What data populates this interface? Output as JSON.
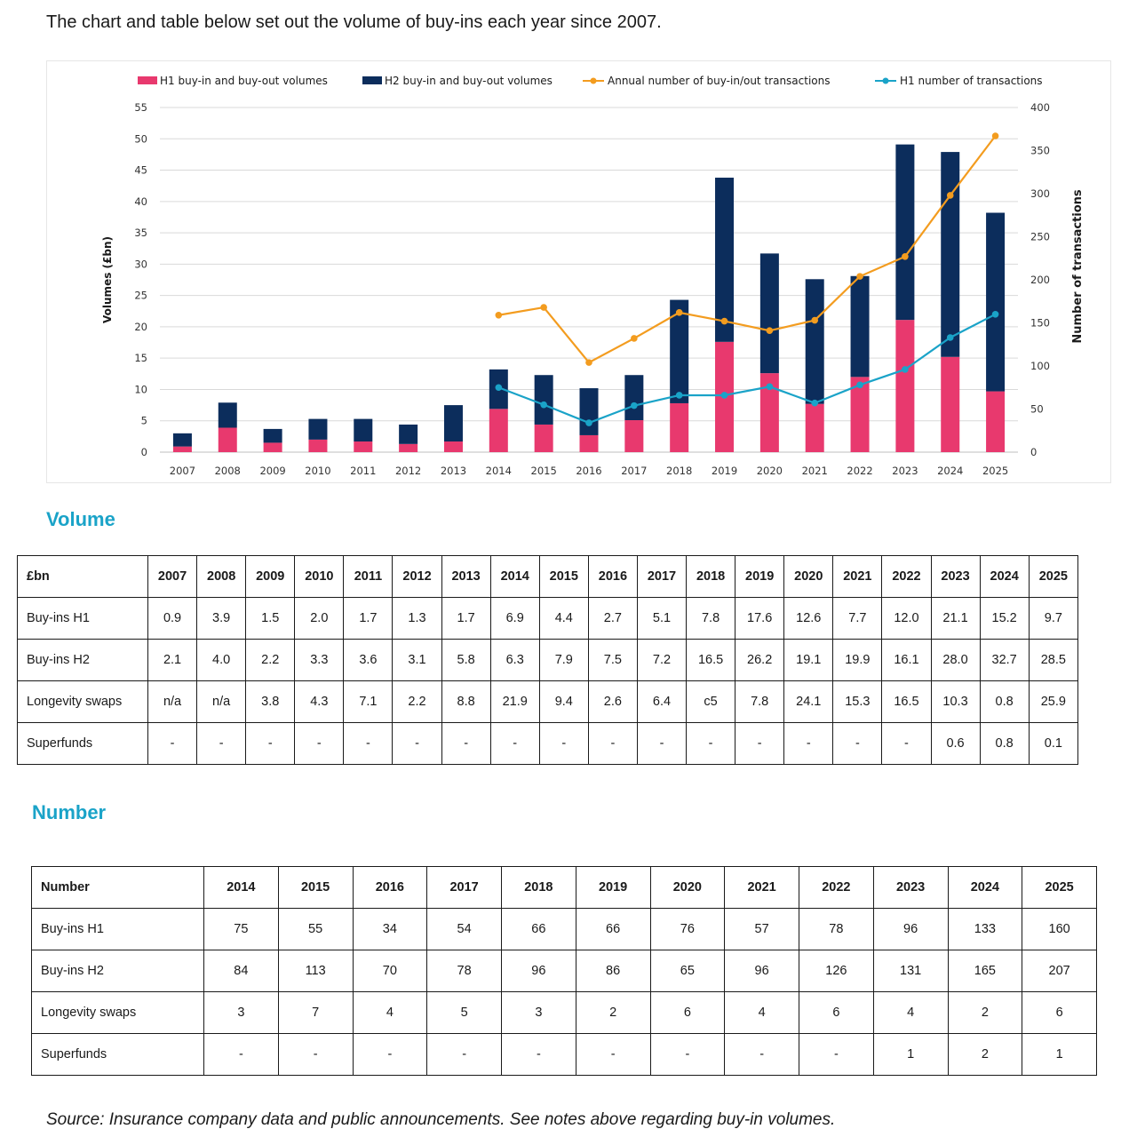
{
  "intro": "The chart and table below set out the volume of buy-ins each year since 2007.",
  "chart_data": {
    "type": "bar",
    "stacked": true,
    "categories": [
      "2007",
      "2008",
      "2009",
      "2010",
      "2011",
      "2012",
      "2013",
      "2014",
      "2015",
      "2016",
      "2017",
      "2018",
      "2019",
      "2020",
      "2021",
      "2022",
      "2023",
      "2024",
      "2025"
    ],
    "title": "",
    "ylabel": "Volumes (£bn)",
    "y2label": "Number of transactions",
    "ylim": [
      0,
      55
    ],
    "y2lim": [
      0,
      400
    ],
    "yticks": [
      0,
      5,
      10,
      15,
      20,
      25,
      30,
      35,
      40,
      45,
      50,
      55
    ],
    "y2ticks": [
      0,
      50,
      100,
      150,
      200,
      250,
      300,
      350,
      400
    ],
    "grid": true,
    "legend_position": "top",
    "series": [
      {
        "name": "H1 buy-in and buy-out volumes",
        "kind": "bar",
        "axis": "left",
        "color": "#e8396e",
        "values": [
          0.9,
          3.9,
          1.5,
          2.0,
          1.7,
          1.3,
          1.7,
          6.9,
          4.4,
          2.7,
          5.1,
          7.8,
          17.6,
          12.6,
          7.7,
          12.0,
          21.1,
          15.2,
          9.7
        ]
      },
      {
        "name": "H2 buy-in and buy-out volumes",
        "kind": "bar",
        "axis": "left",
        "color": "#0c2d5c",
        "values": [
          2.1,
          4.0,
          2.2,
          3.3,
          3.6,
          3.1,
          5.8,
          6.3,
          7.9,
          7.5,
          7.2,
          16.5,
          26.2,
          19.1,
          19.9,
          16.1,
          28.0,
          32.7,
          28.5
        ]
      },
      {
        "name": "Annual number of buy-in/out transactions",
        "kind": "line",
        "axis": "right",
        "color": "#f39c1f",
        "values": [
          null,
          null,
          null,
          null,
          null,
          null,
          null,
          159,
          168,
          104,
          132,
          162,
          152,
          141,
          153,
          204,
          227,
          298,
          367
        ]
      },
      {
        "name": "H1 number of transactions",
        "kind": "line",
        "axis": "right",
        "color": "#1aa3c8",
        "values": [
          null,
          null,
          null,
          null,
          null,
          null,
          null,
          75,
          55,
          34,
          54,
          66,
          66,
          76,
          57,
          78,
          96,
          133,
          160
        ]
      }
    ]
  },
  "volume_table": {
    "title": "Volume",
    "header": [
      "£bn",
      "2007",
      "2008",
      "2009",
      "2010",
      "2011",
      "2012",
      "2013",
      "2014",
      "2015",
      "2016",
      "2017",
      "2018",
      "2019",
      "2020",
      "2021",
      "2022",
      "2023",
      "2024",
      "2025"
    ],
    "rows": [
      [
        "Buy-ins H1",
        "0.9",
        "3.9",
        "1.5",
        "2.0",
        "1.7",
        "1.3",
        "1.7",
        "6.9",
        "4.4",
        "2.7",
        "5.1",
        "7.8",
        "17.6",
        "12.6",
        "7.7",
        "12.0",
        "21.1",
        "15.2",
        "9.7"
      ],
      [
        "Buy-ins H2",
        "2.1",
        "4.0",
        "2.2",
        "3.3",
        "3.6",
        "3.1",
        "5.8",
        "6.3",
        "7.9",
        "7.5",
        "7.2",
        "16.5",
        "26.2",
        "19.1",
        "19.9",
        "16.1",
        "28.0",
        "32.7",
        "28.5"
      ],
      [
        "Longevity swaps",
        "n/a",
        "n/a",
        "3.8",
        "4.3",
        "7.1",
        "2.2",
        "8.8",
        "21.9",
        "9.4",
        "2.6",
        "6.4",
        "c5",
        "7.8",
        "24.1",
        "15.3",
        "16.5",
        "10.3",
        "0.8",
        "25.9"
      ],
      [
        "Superfunds",
        "-",
        "-",
        "-",
        "-",
        "-",
        "-",
        "-",
        "-",
        "-",
        "-",
        "-",
        "-",
        "-",
        "-",
        "-",
        "-",
        "0.6",
        "0.8",
        "0.1"
      ]
    ]
  },
  "number_table": {
    "title": "Number",
    "header": [
      "Number",
      "2014",
      "2015",
      "2016",
      "2017",
      "2018",
      "2019",
      "2020",
      "2021",
      "2022",
      "2023",
      "2024",
      "2025"
    ],
    "rows": [
      [
        "Buy-ins H1",
        "75",
        "55",
        "34",
        "54",
        "66",
        "66",
        "76",
        "57",
        "78",
        "96",
        "133",
        "160"
      ],
      [
        "Buy-ins H2",
        "84",
        "113",
        "70",
        "78",
        "96",
        "86",
        "65",
        "96",
        "126",
        "131",
        "165",
        "207"
      ],
      [
        "Longevity swaps",
        "3",
        "7",
        "4",
        "5",
        "3",
        "2",
        "6",
        "4",
        "6",
        "4",
        "2",
        "6"
      ],
      [
        "Superfunds",
        "-",
        "-",
        "-",
        "-",
        "-",
        "-",
        "-",
        "-",
        "-",
        "1",
        "2",
        "1"
      ]
    ]
  },
  "source": "Source: Insurance company data and public announcements. See notes above regarding buy-in volumes."
}
